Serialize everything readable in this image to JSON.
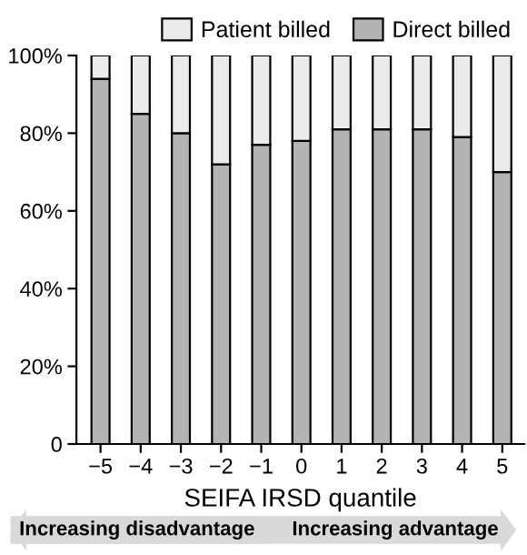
{
  "chart_data": {
    "type": "bar",
    "stacked": true,
    "xlabel": "SEIFA IRSD quantile",
    "categories": [
      "−5",
      "−4",
      "−3",
      "−2",
      "−1",
      "0",
      "1",
      "2",
      "3",
      "4",
      "5"
    ],
    "series": [
      {
        "name": "Direct billed",
        "color": "#b3b3b3",
        "values": [
          94,
          85,
          80,
          72,
          77,
          78,
          81,
          81,
          81,
          79,
          70
        ]
      },
      {
        "name": "Patient billed",
        "color": "#ebebeb",
        "values": [
          6,
          15,
          20,
          28,
          23,
          22,
          19,
          19,
          19,
          21,
          30
        ]
      }
    ],
    "ylim": [
      0,
      100
    ],
    "yticks": [
      0,
      {
        "value": 20,
        "label": "20%"
      },
      {
        "value": 40,
        "label": "40%"
      },
      {
        "value": 60,
        "label": "60%"
      },
      {
        "value": 80,
        "label": "80%"
      },
      {
        "value": 100,
        "label": "100%"
      }
    ],
    "grid": false,
    "legend": "top right",
    "annotations": [
      "Increasing disadvantage",
      "Increasing advantage"
    ]
  }
}
